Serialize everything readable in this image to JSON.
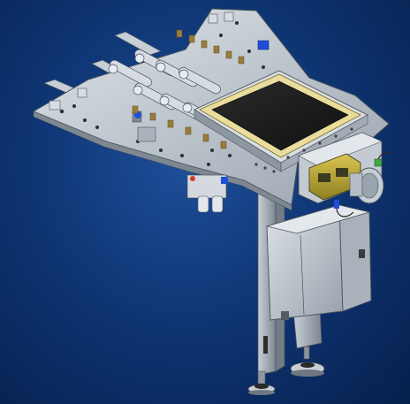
{
  "scene": {
    "subject": "industrial-fixture-cad-render",
    "background_color_center": "#1e4f9a",
    "background_color_edge": "#06204d",
    "palette": {
      "steel": "#b9c2cc",
      "steel_dark": "#6d7884",
      "steel_light": "#dfe5ea",
      "pad_dark": "#1a1a1a",
      "gasket": "#e9dc9c",
      "motor_yellow": "#c9b43a",
      "motor_dark": "#3c3a20",
      "cabinet": "#c7ccd2",
      "accent_blue": "#1f4fd8",
      "accent_red": "#d23b2b",
      "accent_green": "#3da64a",
      "brass": "#9a7c3a"
    },
    "icons": [
      "gear-motor-icon",
      "pneumatic-cylinder-icon",
      "leveling-foot-icon",
      "cable-gland-icon"
    ]
  }
}
